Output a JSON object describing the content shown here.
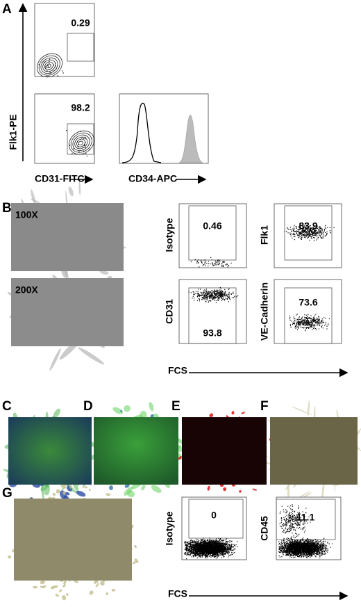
{
  "panel_a": {
    "label": "A",
    "gates": [
      "0.29",
      "98.2"
    ],
    "y_axis": "Flk1-PE",
    "x_axis": "CD31-FITC",
    "histogram_x_axis": "CD34-APC"
  },
  "panel_b": {
    "label": "B",
    "magnifications": [
      "100X",
      "200X"
    ],
    "plots": [
      {
        "marker": "Isotype",
        "value": "0.46"
      },
      {
        "marker": "Flk1",
        "value": "83.9"
      },
      {
        "marker": "CD31",
        "value": "93.8"
      },
      {
        "marker": "VE-Cadherin",
        "value": "73.6"
      }
    ],
    "x_axis": "FCS"
  },
  "panels_c_to_f": {
    "labels": [
      "C",
      "D",
      "E",
      "F"
    ]
  },
  "panel_g": {
    "label": "G",
    "plots": [
      {
        "marker": "Isotype",
        "value": "0"
      },
      {
        "marker": "CD45",
        "value": "11.1"
      }
    ],
    "x_axis": "FCS"
  }
}
